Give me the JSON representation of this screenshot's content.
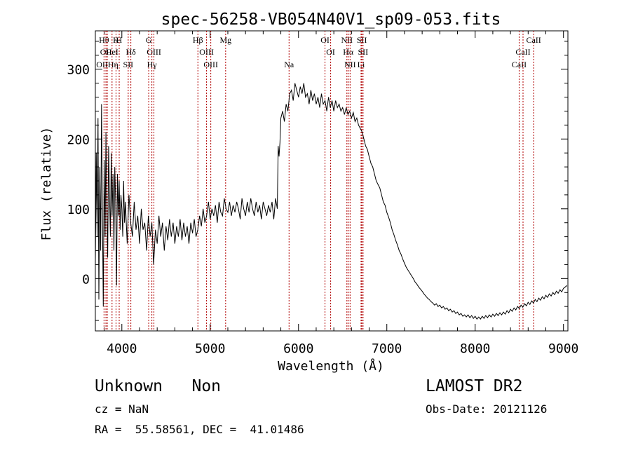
{
  "chart_data": {
    "type": "line",
    "title": "spec-56258-VB054N40V1_sp09-053.fits",
    "xlabel": "Wavelength (Å)",
    "ylabel": "Flux (relative)",
    "xlim": [
      3700,
      9050
    ],
    "ylim": [
      -75,
      355
    ],
    "xticks": [
      4000,
      5000,
      6000,
      7000,
      8000,
      9000
    ],
    "yticks": [
      0,
      100,
      200,
      300
    ],
    "x_tick_labels": [
      "4000",
      "5000",
      "6000",
      "7000",
      "8000",
      "9000"
    ],
    "y_tick_labels": [
      "0",
      "100",
      "200",
      "300"
    ],
    "grid": false,
    "series": [
      {
        "points": [
          [
            3700,
            20
          ],
          [
            3710,
            180
          ],
          [
            3720,
            60
          ],
          [
            3730,
            230
          ],
          [
            3740,
            -30
          ],
          [
            3750,
            160
          ],
          [
            3760,
            40
          ],
          [
            3770,
            250
          ],
          [
            3780,
            90
          ],
          [
            3790,
            -40
          ],
          [
            3800,
            170
          ],
          [
            3810,
            60
          ],
          [
            3820,
            210
          ],
          [
            3830,
            100
          ],
          [
            3840,
            30
          ],
          [
            3850,
            190
          ],
          [
            3860,
            120
          ],
          [
            3870,
            60
          ],
          [
            3880,
            180
          ],
          [
            3890,
            90
          ],
          [
            3900,
            150
          ],
          [
            3910,
            40
          ],
          [
            3920,
            160
          ],
          [
            3930,
            110
          ],
          [
            3940,
            -10
          ],
          [
            3950,
            150
          ],
          [
            3960,
            90
          ],
          [
            3970,
            140
          ],
          [
            3980,
            70
          ],
          [
            3990,
            120
          ],
          [
            4000,
            100
          ],
          [
            4010,
            60
          ],
          [
            4020,
            140
          ],
          [
            4030,
            80
          ],
          [
            4040,
            110
          ],
          [
            4060,
            50
          ],
          [
            4080,
            120
          ],
          [
            4100,
            80
          ],
          [
            4120,
            60
          ],
          [
            4140,
            110
          ],
          [
            4160,
            70
          ],
          [
            4180,
            90
          ],
          [
            4200,
            50
          ],
          [
            4220,
            100
          ],
          [
            4240,
            70
          ],
          [
            4260,
            80
          ],
          [
            4280,
            40
          ],
          [
            4300,
            90
          ],
          [
            4320,
            60
          ],
          [
            4340,
            80
          ],
          [
            4360,
            20
          ],
          [
            4380,
            70
          ],
          [
            4400,
            50
          ],
          [
            4420,
            90
          ],
          [
            4440,
            60
          ],
          [
            4460,
            80
          ],
          [
            4480,
            40
          ],
          [
            4500,
            75
          ],
          [
            4520,
            55
          ],
          [
            4540,
            85
          ],
          [
            4560,
            60
          ],
          [
            4580,
            80
          ],
          [
            4600,
            50
          ],
          [
            4620,
            75
          ],
          [
            4640,
            60
          ],
          [
            4660,
            85
          ],
          [
            4680,
            55
          ],
          [
            4700,
            80
          ],
          [
            4720,
            60
          ],
          [
            4740,
            75
          ],
          [
            4760,
            50
          ],
          [
            4780,
            80
          ],
          [
            4800,
            65
          ],
          [
            4820,
            85
          ],
          [
            4840,
            60
          ],
          [
            4860,
            70
          ],
          [
            4880,
            90
          ],
          [
            4900,
            75
          ],
          [
            4920,
            100
          ],
          [
            4940,
            80
          ],
          [
            4960,
            90
          ],
          [
            4980,
            110
          ],
          [
            5000,
            85
          ],
          [
            5020,
            100
          ],
          [
            5040,
            90
          ],
          [
            5060,
            105
          ],
          [
            5080,
            80
          ],
          [
            5100,
            110
          ],
          [
            5120,
            95
          ],
          [
            5140,
            90
          ],
          [
            5160,
            115
          ],
          [
            5180,
            100
          ],
          [
            5200,
            95
          ],
          [
            5220,
            110
          ],
          [
            5240,
            90
          ],
          [
            5260,
            105
          ],
          [
            5280,
            95
          ],
          [
            5300,
            110
          ],
          [
            5320,
            100
          ],
          [
            5340,
            85
          ],
          [
            5360,
            115
          ],
          [
            5380,
            100
          ],
          [
            5400,
            90
          ],
          [
            5420,
            110
          ],
          [
            5440,
            95
          ],
          [
            5460,
            115
          ],
          [
            5480,
            100
          ],
          [
            5500,
            90
          ],
          [
            5520,
            110
          ],
          [
            5540,
            95
          ],
          [
            5560,
            105
          ],
          [
            5580,
            85
          ],
          [
            5600,
            110
          ],
          [
            5620,
            100
          ],
          [
            5640,
            90
          ],
          [
            5660,
            105
          ],
          [
            5680,
            95
          ],
          [
            5700,
            110
          ],
          [
            5720,
            85
          ],
          [
            5740,
            115
          ],
          [
            5760,
            100
          ],
          [
            5770,
            190
          ],
          [
            5780,
            175
          ],
          [
            5790,
            195
          ],
          [
            5800,
            230
          ],
          [
            5820,
            240
          ],
          [
            5840,
            225
          ],
          [
            5860,
            250
          ],
          [
            5880,
            240
          ],
          [
            5900,
            265
          ],
          [
            5920,
            270
          ],
          [
            5940,
            255
          ],
          [
            5960,
            280
          ],
          [
            5980,
            270
          ],
          [
            6000,
            260
          ],
          [
            6020,
            275
          ],
          [
            6040,
            265
          ],
          [
            6060,
            280
          ],
          [
            6080,
            260
          ],
          [
            6100,
            265
          ],
          [
            6120,
            250
          ],
          [
            6140,
            270
          ],
          [
            6160,
            255
          ],
          [
            6180,
            265
          ],
          [
            6200,
            250
          ],
          [
            6220,
            260
          ],
          [
            6240,
            245
          ],
          [
            6260,
            265
          ],
          [
            6280,
            250
          ],
          [
            6300,
            255
          ],
          [
            6320,
            240
          ],
          [
            6340,
            260
          ],
          [
            6360,
            245
          ],
          [
            6380,
            255
          ],
          [
            6400,
            240
          ],
          [
            6420,
            255
          ],
          [
            6440,
            245
          ],
          [
            6460,
            250
          ],
          [
            6480,
            240
          ],
          [
            6500,
            245
          ],
          [
            6520,
            235
          ],
          [
            6540,
            245
          ],
          [
            6560,
            235
          ],
          [
            6580,
            240
          ],
          [
            6600,
            230
          ],
          [
            6620,
            238
          ],
          [
            6640,
            225
          ],
          [
            6660,
            230
          ],
          [
            6680,
            220
          ],
          [
            6700,
            215
          ],
          [
            6720,
            210
          ],
          [
            6740,
            200
          ],
          [
            6760,
            190
          ],
          [
            6780,
            185
          ],
          [
            6800,
            175
          ],
          [
            6820,
            165
          ],
          [
            6840,
            160
          ],
          [
            6860,
            150
          ],
          [
            6880,
            140
          ],
          [
            6900,
            135
          ],
          [
            6920,
            130
          ],
          [
            6940,
            120
          ],
          [
            6960,
            110
          ],
          [
            6980,
            105
          ],
          [
            7000,
            95
          ],
          [
            7020,
            88
          ],
          [
            7040,
            80
          ],
          [
            7060,
            70
          ],
          [
            7080,
            63
          ],
          [
            7100,
            55
          ],
          [
            7120,
            48
          ],
          [
            7140,
            40
          ],
          [
            7160,
            35
          ],
          [
            7180,
            28
          ],
          [
            7200,
            22
          ],
          [
            7220,
            16
          ],
          [
            7240,
            12
          ],
          [
            7260,
            8
          ],
          [
            7280,
            4
          ],
          [
            7300,
            0
          ],
          [
            7320,
            -5
          ],
          [
            7340,
            -8
          ],
          [
            7360,
            -12
          ],
          [
            7380,
            -15
          ],
          [
            7400,
            -18
          ],
          [
            7420,
            -22
          ],
          [
            7440,
            -25
          ],
          [
            7460,
            -28
          ],
          [
            7480,
            -30
          ],
          [
            7500,
            -33
          ],
          [
            7520,
            -35
          ],
          [
            7540,
            -38
          ],
          [
            7560,
            -36
          ],
          [
            7580,
            -40
          ],
          [
            7600,
            -38
          ],
          [
            7620,
            -42
          ],
          [
            7640,
            -40
          ],
          [
            7660,
            -44
          ],
          [
            7680,
            -42
          ],
          [
            7700,
            -46
          ],
          [
            7720,
            -44
          ],
          [
            7740,
            -48
          ],
          [
            7760,
            -46
          ],
          [
            7780,
            -50
          ],
          [
            7800,
            -48
          ],
          [
            7820,
            -52
          ],
          [
            7840,
            -50
          ],
          [
            7860,
            -54
          ],
          [
            7880,
            -52
          ],
          [
            7900,
            -55
          ],
          [
            7920,
            -52
          ],
          [
            7940,
            -56
          ],
          [
            7960,
            -53
          ],
          [
            7980,
            -57
          ],
          [
            8000,
            -54
          ],
          [
            8020,
            -58
          ],
          [
            8040,
            -55
          ],
          [
            8060,
            -58
          ],
          [
            8080,
            -54
          ],
          [
            8100,
            -57
          ],
          [
            8120,
            -53
          ],
          [
            8140,
            -56
          ],
          [
            8160,
            -52
          ],
          [
            8180,
            -55
          ],
          [
            8200,
            -51
          ],
          [
            8220,
            -54
          ],
          [
            8240,
            -50
          ],
          [
            8260,
            -53
          ],
          [
            8280,
            -49
          ],
          [
            8300,
            -52
          ],
          [
            8320,
            -48
          ],
          [
            8340,
            -51
          ],
          [
            8360,
            -46
          ],
          [
            8380,
            -49
          ],
          [
            8400,
            -44
          ],
          [
            8420,
            -47
          ],
          [
            8440,
            -42
          ],
          [
            8460,
            -45
          ],
          [
            8480,
            -40
          ],
          [
            8500,
            -43
          ],
          [
            8520,
            -38
          ],
          [
            8540,
            -41
          ],
          [
            8560,
            -36
          ],
          [
            8580,
            -39
          ],
          [
            8600,
            -34
          ],
          [
            8620,
            -37
          ],
          [
            8640,
            -32
          ],
          [
            8660,
            -35
          ],
          [
            8680,
            -30
          ],
          [
            8700,
            -33
          ],
          [
            8720,
            -28
          ],
          [
            8740,
            -31
          ],
          [
            8760,
            -26
          ],
          [
            8780,
            -29
          ],
          [
            8800,
            -24
          ],
          [
            8820,
            -27
          ],
          [
            8840,
            -22
          ],
          [
            8860,
            -25
          ],
          [
            8880,
            -20
          ],
          [
            8900,
            -23
          ],
          [
            8920,
            -18
          ],
          [
            8940,
            -21
          ],
          [
            8960,
            -16
          ],
          [
            8980,
            -19
          ],
          [
            9000,
            -14
          ],
          [
            9020,
            -12
          ],
          [
            9040,
            -10
          ]
        ]
      }
    ],
    "line_markers": [
      {
        "wave": 3798,
        "label": "Hθ",
        "row": 0
      },
      {
        "wave": 3820,
        "label": "OII",
        "row": 1
      },
      {
        "wave": 3835,
        "label": "OIIHη",
        "row": 2
      },
      {
        "wave": 3889,
        "label": "HeI",
        "row": 1
      },
      {
        "wave": 3934,
        "label": "K",
        "row": 0
      },
      {
        "wave": 3970,
        "label": "H",
        "row": 0
      },
      {
        "wave": 4102,
        "label": "Hδ",
        "row": 1
      },
      {
        "wave": 4072,
        "label": "SII",
        "row": 2
      },
      {
        "wave": 4304,
        "label": "G",
        "row": 0
      },
      {
        "wave": 4363,
        "label": "OIII",
        "row": 1
      },
      {
        "wave": 4340,
        "label": "Hγ",
        "row": 2
      },
      {
        "wave": 4861,
        "label": "Hβ",
        "row": 0
      },
      {
        "wave": 4959,
        "label": "OIII",
        "row": 1
      },
      {
        "wave": 5007,
        "label": "OIII",
        "row": 2
      },
      {
        "wave": 5175,
        "label": "Mg",
        "row": 0
      },
      {
        "wave": 5893,
        "label": "Na",
        "row": 2
      },
      {
        "wave": 6300,
        "label": "OI",
        "row": 0
      },
      {
        "wave": 6364,
        "label": "OI",
        "row": 1
      },
      {
        "wave": 6548,
        "label": "NII",
        "row": 0
      },
      {
        "wave": 6563,
        "label": "Hα",
        "row": 1
      },
      {
        "wave": 6584,
        "label": "NII",
        "row": 2
      },
      {
        "wave": 6717,
        "label": "SII",
        "row": 0
      },
      {
        "wave": 6731,
        "label": "SII",
        "row": 1
      },
      {
        "wave": 6708,
        "label": "Li",
        "row": 2
      },
      {
        "wave": 8498,
        "label": "CaII",
        "row": 2
      },
      {
        "wave": 8542,
        "label": "CaII",
        "row": 1
      },
      {
        "wave": 8662,
        "label": "CaII",
        "row": 0
      }
    ],
    "marker_color": "#b00000",
    "line_color": "#000000"
  },
  "info": {
    "class_text": "Unknown   Non",
    "survey": "LAMOST DR2",
    "cz": "cz = NaN",
    "obs_date": "Obs-Date: 20121126",
    "radec": "RA =  55.58561, DEC =  41.01486"
  }
}
